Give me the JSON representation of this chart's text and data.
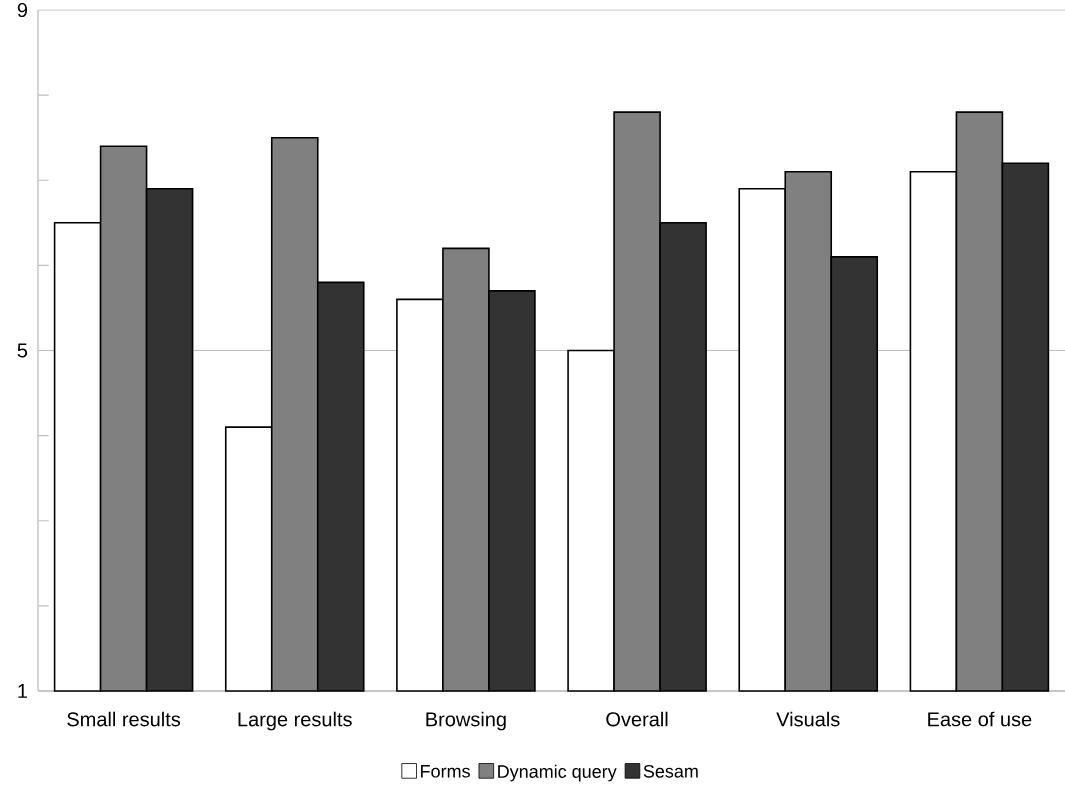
{
  "chart_data": {
    "type": "bar",
    "categories": [
      "Small results",
      "Large results",
      "Browsing",
      "Overall",
      "Visuals",
      "Ease of use"
    ],
    "series": [
      {
        "name": "Forms",
        "color": "#ffffff",
        "values": [
          6.5,
          4.1,
          5.6,
          5.0,
          6.9,
          7.1
        ]
      },
      {
        "name": "Dynamic query",
        "color": "#808080",
        "values": [
          7.4,
          7.5,
          6.2,
          7.8,
          7.1,
          7.8
        ]
      },
      {
        "name": "Sesam",
        "color": "#333333",
        "values": [
          6.9,
          5.8,
          5.7,
          6.5,
          6.1,
          7.2
        ]
      }
    ],
    "ylim": [
      1,
      9
    ],
    "yticks": [
      1,
      {
        "value": 2,
        "label": null
      },
      {
        "value": 3,
        "label": null
      },
      {
        "value": 4,
        "label": null
      },
      5,
      {
        "value": 6,
        "label": null
      },
      {
        "value": 7,
        "label": null
      },
      {
        "value": 8,
        "label": null
      },
      9
    ],
    "grid": "y",
    "legend": "bottom"
  }
}
